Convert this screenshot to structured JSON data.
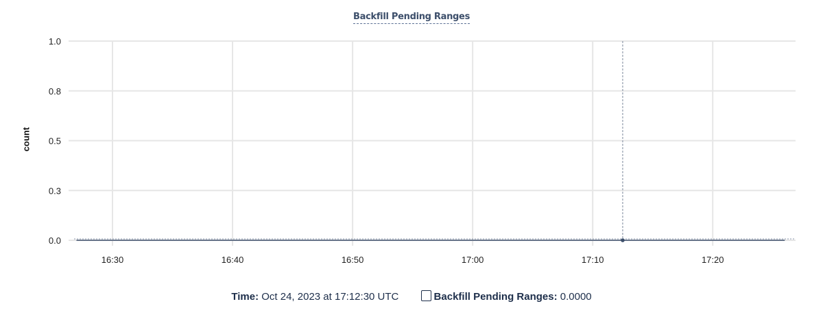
{
  "chart_data": {
    "type": "line",
    "title": "Backfill Pending Ranges",
    "ylabel": "count",
    "xlabel": "",
    "ylim": [
      0,
      1
    ],
    "yticks": [
      0,
      0.25,
      0.5,
      0.75,
      1.0
    ],
    "ytick_labels": [
      "0.0",
      "0.3",
      "0.5",
      "0.8",
      "1.0"
    ],
    "xlim": [
      "16:26:48",
      "17:26:54"
    ],
    "xticks": [
      "16:30",
      "16:40",
      "16:50",
      "17:00",
      "17:10",
      "17:20"
    ],
    "grid": true,
    "series": [
      {
        "name": "Backfill Pending Ranges",
        "color": "#3d4f6b",
        "x": [
          "16:27:00",
          "16:35:00",
          "16:45:00",
          "16:55:00",
          "17:05:00",
          "17:12:30",
          "17:20:00",
          "17:26:00"
        ],
        "y": [
          0,
          0,
          0,
          0,
          0,
          0,
          0,
          0
        ]
      }
    ],
    "cursor": {
      "x": "17:12:30",
      "y": 0
    }
  },
  "legend": {
    "time_label": "Time:",
    "time_value": "Oct 24, 2023 at 17:12:30 UTC",
    "series_label": "Backfill Pending Ranges:",
    "series_value": "0.0000",
    "series_checked": false
  }
}
